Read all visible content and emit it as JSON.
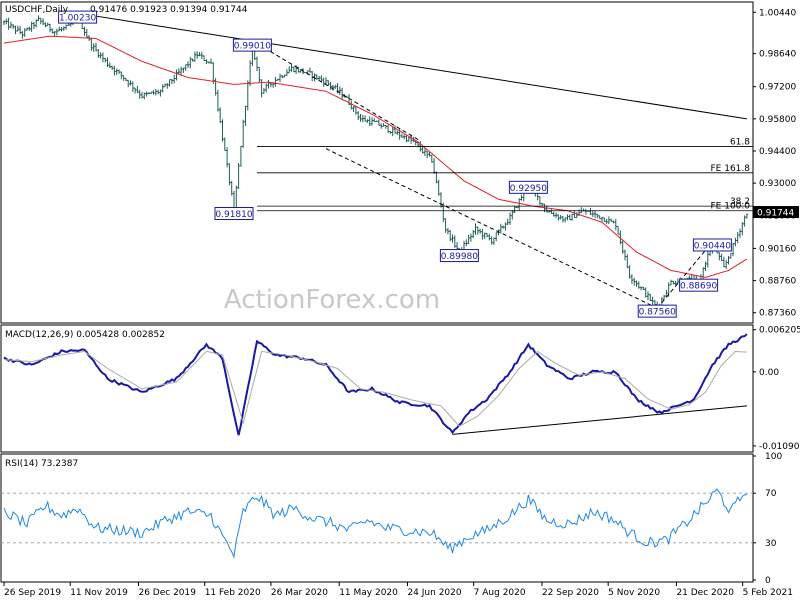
{
  "chart_data": [
    {
      "type": "ohlc",
      "panel": "price",
      "symbol_label": "USDCHF,Daily",
      "ohlc_values": "0.91476 0.91923 0.91394 0.91744",
      "watermark": "ActionForex.com",
      "ylim": [
        0.87,
        1.008
      ],
      "y_ticks": [
        "1.00440",
        "0.98640",
        "0.97200",
        "0.95800",
        "0.94400",
        "0.93000",
        "0.91600",
        "0.90160",
        "0.88760",
        "0.87360"
      ],
      "y_tick_values": [
        1.0044,
        0.9864,
        0.972,
        0.958,
        0.944,
        0.93,
        0.916,
        0.9016,
        0.8876,
        0.8736
      ],
      "current_price_label": "0.91744",
      "current_price": 0.91744,
      "close_anchors": [
        [
          0,
          1.0
        ],
        [
          8,
          0.995
        ],
        [
          15,
          1.001
        ],
        [
          22,
          0.996
        ],
        [
          28,
          0.998
        ],
        [
          32,
          1.0023
        ],
        [
          38,
          0.99
        ],
        [
          45,
          0.982
        ],
        [
          52,
          0.976
        ],
        [
          60,
          0.968
        ],
        [
          68,
          0.97
        ],
        [
          76,
          0.978
        ],
        [
          84,
          0.986
        ],
        [
          90,
          0.982
        ],
        [
          95,
          0.95
        ],
        [
          100,
          0.9181
        ],
        [
          104,
          0.956
        ],
        [
          108,
          0.9901
        ],
        [
          112,
          0.97
        ],
        [
          118,
          0.975
        ],
        [
          125,
          0.98
        ],
        [
          132,
          0.978
        ],
        [
          140,
          0.974
        ],
        [
          148,
          0.968
        ],
        [
          155,
          0.958
        ],
        [
          162,
          0.956
        ],
        [
          170,
          0.952
        ],
        [
          178,
          0.948
        ],
        [
          186,
          0.94
        ],
        [
          192,
          0.91
        ],
        [
          198,
          0.9
        ],
        [
          205,
          0.91
        ],
        [
          212,
          0.905
        ],
        [
          220,
          0.915
        ],
        [
          228,
          0.9295
        ],
        [
          236,
          0.918
        ],
        [
          244,
          0.914
        ],
        [
          252,
          0.918
        ],
        [
          260,
          0.915
        ],
        [
          266,
          0.912
        ],
        [
          272,
          0.89
        ],
        [
          278,
          0.883
        ],
        [
          284,
          0.8756
        ],
        [
          290,
          0.887
        ],
        [
          296,
          0.888
        ],
        [
          302,
          0.8869
        ],
        [
          308,
          0.9044
        ],
        [
          313,
          0.893
        ],
        [
          318,
          0.905
        ],
        [
          323,
          0.9174
        ]
      ],
      "ma_anchors": [
        [
          0,
          0.991
        ],
        [
          20,
          0.994
        ],
        [
          40,
          0.993
        ],
        [
          60,
          0.983
        ],
        [
          80,
          0.976
        ],
        [
          100,
          0.973
        ],
        [
          115,
          0.974
        ],
        [
          140,
          0.97
        ],
        [
          160,
          0.96
        ],
        [
          180,
          0.948
        ],
        [
          200,
          0.931
        ],
        [
          215,
          0.923
        ],
        [
          230,
          0.92
        ],
        [
          245,
          0.918
        ],
        [
          260,
          0.913
        ],
        [
          275,
          0.9
        ],
        [
          290,
          0.892
        ],
        [
          305,
          0.889
        ],
        [
          315,
          0.892
        ],
        [
          323,
          0.897
        ]
      ],
      "fib_levels": [
        {
          "label": "61.8",
          "value": 0.946
        },
        {
          "label": "FE 161.8",
          "value": 0.9345
        },
        {
          "label": "38.2",
          "value": 0.92
        },
        {
          "label": "FE 100.0",
          "value": 0.918
        }
      ],
      "annotations": [
        {
          "label": "1.00230",
          "bar": 32,
          "value": 1.0023
        },
        {
          "label": "0.99010",
          "bar": 108,
          "value": 0.9901
        },
        {
          "label": "0.91810",
          "bar": 100,
          "value": 0.9181
        },
        {
          "label": "0.89980",
          "bar": 198,
          "value": 0.8998
        },
        {
          "label": "0.92950",
          "bar": 228,
          "value": 0.9295
        },
        {
          "label": "0.90440",
          "bar": 308,
          "value": 0.9044
        },
        {
          "label": "0.88690",
          "bar": 302,
          "value": 0.8869
        },
        {
          "label": "0.87560",
          "bar": 284,
          "value": 0.8756
        }
      ],
      "trendlines": [
        {
          "from": [
            32,
            1.004
          ],
          "to": [
            323,
            0.958
          ],
          "style": "solid"
        },
        {
          "from": [
            108,
            0.992
          ],
          "to": [
            180,
            0.949
          ],
          "style": "dashed"
        },
        {
          "from": [
            140,
            0.945
          ],
          "to": [
            284,
            0.8756
          ],
          "style": "dashed"
        },
        {
          "from": [
            284,
            0.8756
          ],
          "to": [
            308,
            0.9044
          ],
          "style": "dashed"
        }
      ],
      "colors": {
        "bars": "#1f5f5a",
        "ma": "#e0202a",
        "lines": "#000000",
        "label_box": "#1b1b9a"
      }
    },
    {
      "type": "line",
      "panel": "macd",
      "label": "MACD(12,26,9) 0.005428 0.002852",
      "ylim": [
        -0.0115,
        0.0066
      ],
      "y_ticks": [
        "0.006205",
        "0.00",
        "-0.010901"
      ],
      "y_tick_values": [
        0.006205,
        0.0,
        -0.010901
      ],
      "series": [
        {
          "role": "macd",
          "color": "#1a1aa0",
          "anchors": [
            [
              0,
              0.002
            ],
            [
              12,
              0.001
            ],
            [
              25,
              0.003
            ],
            [
              35,
              0.0032
            ],
            [
              45,
              -0.001
            ],
            [
              60,
              -0.003
            ],
            [
              75,
              -0.001
            ],
            [
              88,
              0.004
            ],
            [
              95,
              0.002
            ],
            [
              102,
              -0.0095
            ],
            [
              110,
              0.0045
            ],
            [
              118,
              0.0025
            ],
            [
              130,
              0.002
            ],
            [
              140,
              0.001
            ],
            [
              150,
              -0.003
            ],
            [
              160,
              -0.0025
            ],
            [
              172,
              -0.0045
            ],
            [
              185,
              -0.005
            ],
            [
              195,
              -0.009
            ],
            [
              202,
              -0.006
            ],
            [
              210,
              -0.004
            ],
            [
              220,
              0.0
            ],
            [
              228,
              0.004
            ],
            [
              236,
              0.001
            ],
            [
              246,
              -0.001
            ],
            [
              256,
              0.0
            ],
            [
              266,
              0.0
            ],
            [
              275,
              -0.004
            ],
            [
              285,
              -0.006
            ],
            [
              293,
              -0.005
            ],
            [
              300,
              -0.004
            ],
            [
              308,
              0.001
            ],
            [
              315,
              0.004
            ],
            [
              323,
              0.0054
            ]
          ]
        },
        {
          "role": "signal",
          "color": "#aaaaaa",
          "anchors": [
            [
              0,
              0.0018
            ],
            [
              12,
              0.0015
            ],
            [
              25,
              0.0025
            ],
            [
              35,
              0.003
            ],
            [
              45,
              0.0005
            ],
            [
              60,
              -0.0025
            ],
            [
              75,
              -0.0015
            ],
            [
              88,
              0.003
            ],
            [
              95,
              0.0025
            ],
            [
              104,
              -0.0075
            ],
            [
              112,
              0.003
            ],
            [
              122,
              0.0025
            ],
            [
              135,
              0.0015
            ],
            [
              145,
              0.0005
            ],
            [
              155,
              -0.0025
            ],
            [
              165,
              -0.003
            ],
            [
              178,
              -0.0042
            ],
            [
              190,
              -0.005
            ],
            [
              198,
              -0.008
            ],
            [
              206,
              -0.0065
            ],
            [
              215,
              -0.0035
            ],
            [
              224,
              0.0005
            ],
            [
              232,
              0.003
            ],
            [
              240,
              0.0012
            ],
            [
              250,
              -0.0005
            ],
            [
              260,
              0.0
            ],
            [
              270,
              -0.001
            ],
            [
              280,
              -0.004
            ],
            [
              290,
              -0.0055
            ],
            [
              298,
              -0.0048
            ],
            [
              305,
              -0.003
            ],
            [
              312,
              0.001
            ],
            [
              318,
              0.003
            ],
            [
              323,
              0.0029
            ]
          ]
        }
      ],
      "trendline": {
        "from": [
          195,
          -0.0092
        ],
        "to": [
          323,
          -0.005
        ]
      }
    },
    {
      "type": "line",
      "panel": "rsi",
      "label": "RSI(14) 73.2387",
      "ylim": [
        0,
        100
      ],
      "y_ticks": [
        "100",
        "70",
        "30",
        "0"
      ],
      "y_tick_values": [
        100,
        70,
        30,
        0
      ],
      "levels": [
        70,
        30
      ],
      "series": [
        {
          "role": "rsi",
          "color": "#1e88e5",
          "anchors": [
            [
              0,
              55
            ],
            [
              10,
              45
            ],
            [
              18,
              60
            ],
            [
              25,
              52
            ],
            [
              32,
              58
            ],
            [
              40,
              42
            ],
            [
              50,
              40
            ],
            [
              60,
              38
            ],
            [
              70,
              48
            ],
            [
              80,
              55
            ],
            [
              90,
              52
            ],
            [
              95,
              35
            ],
            [
              100,
              20
            ],
            [
              104,
              55
            ],
            [
              110,
              68
            ],
            [
              118,
              52
            ],
            [
              126,
              58
            ],
            [
              134,
              50
            ],
            [
              142,
              46
            ],
            [
              150,
              40
            ],
            [
              158,
              48
            ],
            [
              166,
              42
            ],
            [
              176,
              40
            ],
            [
              186,
              38
            ],
            [
              194,
              25
            ],
            [
              202,
              35
            ],
            [
              210,
              40
            ],
            [
              220,
              52
            ],
            [
              228,
              65
            ],
            [
              236,
              48
            ],
            [
              246,
              45
            ],
            [
              256,
              55
            ],
            [
              264,
              50
            ],
            [
              272,
              38
            ],
            [
              280,
              30
            ],
            [
              288,
              32
            ],
            [
              296,
              45
            ],
            [
              304,
              60
            ],
            [
              310,
              72
            ],
            [
              316,
              55
            ],
            [
              323,
              73
            ]
          ]
        }
      ]
    }
  ],
  "x_axis": {
    "labels": [
      "26 Sep 2019",
      "11 Nov 2019",
      "26 Dec 2019",
      "11 Feb 2020",
      "26 Mar 2020",
      "11 May 2020",
      "24 Jun 2020",
      "7 Aug 2020",
      "22 Sep 2020",
      "5 Nov 2020",
      "21 Dec 2020",
      "5 Feb 2021"
    ],
    "label_bars": [
      0,
      32,
      65,
      97,
      129,
      162,
      195,
      227,
      260,
      292,
      325,
      357
    ]
  }
}
